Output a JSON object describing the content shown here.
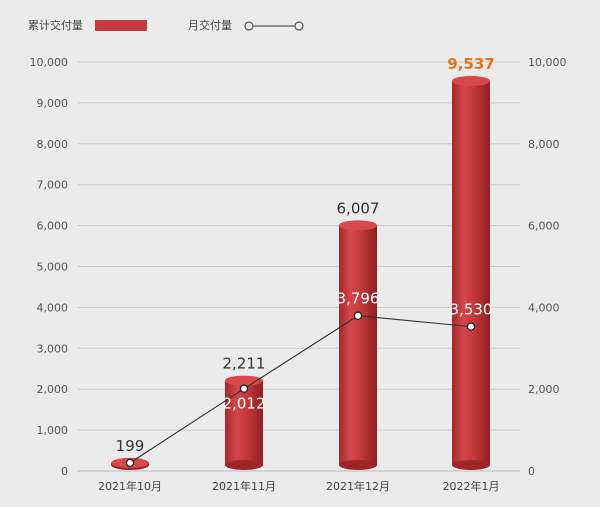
{
  "chart_data": {
    "type": "bar+line",
    "categories": [
      "2021年10月",
      "2021年11月",
      "2021年12月",
      "2022年1月"
    ],
    "series": [
      {
        "name": "累计交付量",
        "type": "bar",
        "axis": "left",
        "values": [
          199,
          2211,
          6007,
          9537
        ],
        "labels": [
          "199",
          "2,211",
          "6,007",
          "9,537"
        ]
      },
      {
        "name": "月交付量",
        "type": "line",
        "axis": "right",
        "values": [
          199,
          2012,
          3796,
          3530
        ],
        "labels": [
          "",
          "2,012",
          "3,796",
          "3,530"
        ]
      }
    ],
    "y_left": {
      "range": [
        0,
        10000
      ],
      "ticks": [
        "0",
        "1,000",
        "2,000",
        "3,000",
        "4,000",
        "5,000",
        "6,000",
        "7,000",
        "8,000",
        "9,000",
        "10,000"
      ]
    },
    "y_right": {
      "range": [
        0,
        10000
      ],
      "ticks": [
        "0",
        "2,000",
        "4,000",
        "6,000",
        "8,000",
        "10,000"
      ]
    },
    "grid": true,
    "legend_position": "top-left",
    "colors": {
      "bar": "#c53a3c",
      "bar_highlight": "#d9494b",
      "bar_shadow": "#9e2628",
      "line": "#333333",
      "highlight_label": "#e8731a",
      "background": "#ebebeb"
    }
  }
}
